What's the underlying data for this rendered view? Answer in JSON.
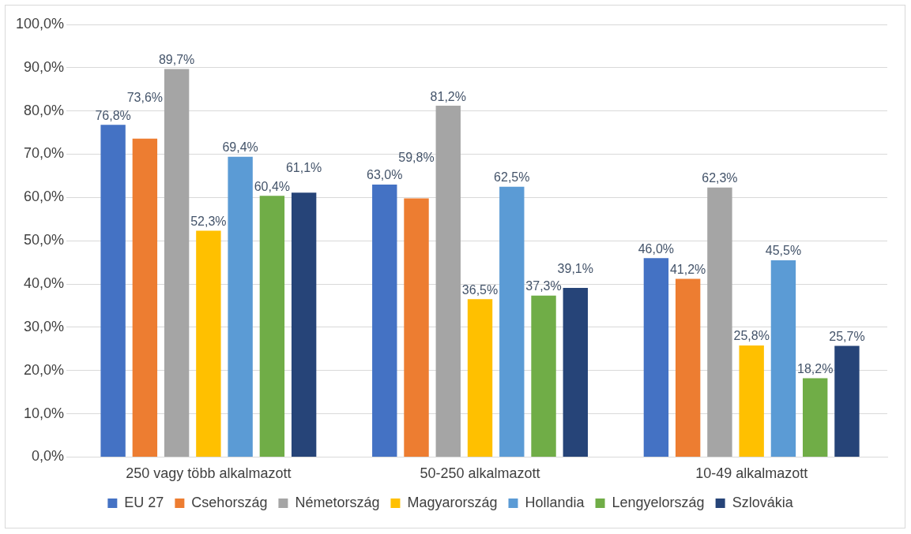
{
  "chart_data": {
    "type": "bar",
    "categories": [
      "250 vagy több alkalmazott",
      "50-250 alkalmazott",
      "10-49 alkalmazott"
    ],
    "series": [
      {
        "name": "EU 27",
        "color": "#4472c4",
        "values": [
          76.8,
          63.0,
          46.0
        ],
        "value_labels": [
          "76,8%",
          "63,0%",
          "46,0%"
        ]
      },
      {
        "name": "Csehország",
        "color": "#ed7d31",
        "values": [
          73.6,
          59.8,
          41.2
        ],
        "value_labels": [
          "73,6%",
          "59,8%",
          "41,2%"
        ]
      },
      {
        "name": "Németország",
        "color": "#a5a5a5",
        "values": [
          89.7,
          81.2,
          62.3
        ],
        "value_labels": [
          "89,7%",
          "81,2%",
          "62,3%"
        ]
      },
      {
        "name": "Magyarország",
        "color": "#ffc000",
        "values": [
          52.3,
          36.5,
          25.8
        ],
        "value_labels": [
          "52,3%",
          "36,5%",
          "25,8%"
        ]
      },
      {
        "name": "Hollandia",
        "color": "#5b9bd5",
        "values": [
          69.4,
          62.5,
          45.5
        ],
        "value_labels": [
          "69,4%",
          "62,5%",
          "45,5%"
        ]
      },
      {
        "name": "Lengyelország",
        "color": "#70ad47",
        "values": [
          60.4,
          37.3,
          18.2
        ],
        "value_labels": [
          "60,4%",
          "37,3%",
          "18,2%"
        ]
      },
      {
        "name": "Szlovákia",
        "color": "#264478",
        "values": [
          61.1,
          39.1,
          25.7
        ],
        "value_labels": [
          "61,1%",
          "39,1%",
          "25,7%"
        ]
      }
    ],
    "ylim": [
      0,
      100
    ],
    "yticks": [
      {
        "value": 0,
        "label": "0,0%"
      },
      {
        "value": 10,
        "label": "10,0%"
      },
      {
        "value": 20,
        "label": "20,0%"
      },
      {
        "value": 30,
        "label": "30,0%"
      },
      {
        "value": 40,
        "label": "40,0%"
      },
      {
        "value": 50,
        "label": "50,0%"
      },
      {
        "value": 60,
        "label": "60,0%"
      },
      {
        "value": 70,
        "label": "70,0%"
      },
      {
        "value": 80,
        "label": "80,0%"
      },
      {
        "value": 90,
        "label": "90,0%"
      },
      {
        "value": 100,
        "label": "100,0%"
      }
    ],
    "grid": "y",
    "legend": "bottom"
  }
}
